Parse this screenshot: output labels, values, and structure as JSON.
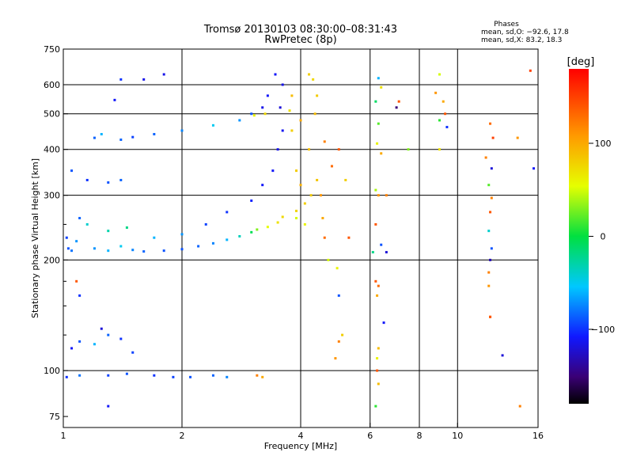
{
  "title": {
    "line1": "Tromsø 20130103 08:30:00–08:31:43",
    "line2": "RwPretec (8p)"
  },
  "phases": {
    "heading": "Phases",
    "o_line": "mean, sd,O: −92.6, 17.8",
    "x_line": "mean, sd,X:  83.2, 18.3"
  },
  "colorbar": {
    "label": "[deg]",
    "ticks": [
      {
        "value": 100,
        "label": "100"
      },
      {
        "value": 0,
        "label": "0"
      },
      {
        "value": -100,
        "label": "−100"
      }
    ],
    "range": [
      -180,
      180
    ]
  },
  "chart_data": {
    "type": "scatter",
    "xlabel": "Frequency [MHz]",
    "ylabel": "Stationary phase Virtual Height [km]",
    "xscale": "log",
    "yscale": "log",
    "xlim": [
      1,
      16
    ],
    "ylim": [
      70,
      750
    ],
    "xticks": [
      {
        "value": 1,
        "label": "1"
      },
      {
        "value": 2,
        "label": "2"
      },
      {
        "value": 4,
        "label": "4"
      },
      {
        "value": 6,
        "label": "6"
      },
      {
        "value": 8,
        "label": "8"
      },
      {
        "value": 10,
        "label": "10"
      },
      {
        "value": 16,
        "label": "16"
      }
    ],
    "yticks": [
      {
        "value": 75,
        "label": "75"
      },
      {
        "value": 100,
        "label": "100"
      },
      {
        "value": 200,
        "label": "200"
      },
      {
        "value": 300,
        "label": "300"
      },
      {
        "value": 400,
        "label": "400"
      },
      {
        "value": 500,
        "label": "500"
      },
      {
        "value": 600,
        "label": "600"
      },
      {
        "value": 750,
        "label": "750"
      }
    ],
    "xgrid": [
      2,
      4,
      6,
      8,
      10
    ],
    "ygrid": [
      100,
      200,
      300,
      400,
      500,
      600
    ],
    "minor_ygrid": [
      125,
      150,
      175,
      250
    ],
    "color_dimension": "phase [deg]",
    "points": [
      [
        1.02,
        230,
        -95
      ],
      [
        1.03,
        215,
        -90
      ],
      [
        1.05,
        212,
        -80
      ],
      [
        1.08,
        225,
        -70
      ],
      [
        1.1,
        260,
        -85
      ],
      [
        1.2,
        215,
        -70
      ],
      [
        1.3,
        212,
        -60
      ],
      [
        1.4,
        218,
        -50
      ],
      [
        1.5,
        213,
        -75
      ],
      [
        1.6,
        211,
        -85
      ],
      [
        1.8,
        212,
        -90
      ],
      [
        2.0,
        214,
        -90
      ],
      [
        2.2,
        218,
        -85
      ],
      [
        2.4,
        222,
        -75
      ],
      [
        2.6,
        227,
        -60
      ],
      [
        2.8,
        232,
        -35
      ],
      [
        3.0,
        238,
        -5
      ],
      [
        3.1,
        242,
        30
      ],
      [
        3.3,
        246,
        55
      ],
      [
        3.5,
        253,
        70
      ],
      [
        3.6,
        262,
        75
      ],
      [
        3.9,
        272,
        78
      ],
      [
        4.1,
        285,
        80
      ],
      [
        4.25,
        300,
        82
      ],
      [
        4.4,
        330,
        85
      ],
      [
        1.15,
        250,
        -40
      ],
      [
        1.3,
        240,
        -30
      ],
      [
        1.45,
        245,
        -20
      ],
      [
        1.7,
        230,
        -60
      ],
      [
        2.0,
        235,
        -70
      ],
      [
        2.3,
        250,
        -95
      ],
      [
        2.6,
        270,
        -100
      ],
      [
        3.0,
        290,
        -105
      ],
      [
        3.2,
        320,
        -110
      ],
      [
        3.4,
        350,
        -110
      ],
      [
        3.5,
        400,
        -115
      ],
      [
        3.6,
        450,
        -112
      ],
      [
        3.55,
        520,
        -120
      ],
      [
        3.6,
        600,
        -115
      ],
      [
        3.45,
        640,
        -110
      ],
      [
        3.3,
        560,
        -110
      ],
      [
        3.2,
        520,
        -115
      ],
      [
        3.0,
        500,
        -90
      ],
      [
        2.8,
        480,
        -70
      ],
      [
        3.05,
        495,
        60
      ],
      [
        3.25,
        500,
        75
      ],
      [
        2.4,
        465,
        -50
      ],
      [
        2.0,
        450,
        -75
      ],
      [
        1.7,
        440,
        -85
      ],
      [
        1.5,
        432,
        -95
      ],
      [
        1.2,
        430,
        -85
      ],
      [
        1.25,
        440,
        -60
      ],
      [
        1.4,
        425,
        -85
      ],
      [
        1.15,
        330,
        -100
      ],
      [
        1.3,
        325,
        -90
      ],
      [
        1.4,
        330,
        -85
      ],
      [
        1.05,
        350,
        -90
      ],
      [
        1.8,
        640,
        -115
      ],
      [
        1.6,
        620,
        -115
      ],
      [
        1.4,
        620,
        -100
      ],
      [
        1.35,
        545,
        -110
      ],
      [
        4.2,
        400,
        88
      ],
      [
        4.35,
        500,
        90
      ],
      [
        4.4,
        560,
        82
      ],
      [
        4.3,
        620,
        75
      ],
      [
        4.2,
        640,
        80
      ],
      [
        3.8,
        450,
        80
      ],
      [
        3.9,
        350,
        82
      ],
      [
        4.0,
        320,
        95
      ],
      [
        4.5,
        300,
        110
      ],
      [
        4.8,
        360,
        130
      ],
      [
        4.6,
        420,
        120
      ],
      [
        4.0,
        480,
        100
      ],
      [
        3.75,
        510,
        70
      ],
      [
        3.8,
        560,
        90
      ],
      [
        4.1,
        250,
        60
      ],
      [
        3.9,
        260,
        50
      ],
      [
        1.1,
        120,
        -90
      ],
      [
        1.05,
        115,
        -110
      ],
      [
        1.2,
        118,
        -60
      ],
      [
        1.3,
        125,
        -85
      ],
      [
        1.4,
        122,
        -100
      ],
      [
        1.5,
        112,
        -95
      ],
      [
        1.25,
        130,
        -120
      ],
      [
        1.02,
        96,
        -100
      ],
      [
        1.1,
        97,
        -80
      ],
      [
        1.3,
        97,
        -95
      ],
      [
        1.45,
        98,
        -90
      ],
      [
        1.7,
        97,
        -100
      ],
      [
        1.9,
        96,
        -95
      ],
      [
        2.1,
        96,
        -90
      ],
      [
        2.4,
        97,
        -85
      ],
      [
        2.6,
        96,
        -75
      ],
      [
        3.1,
        97,
        120
      ],
      [
        3.2,
        96,
        100
      ],
      [
        1.3,
        80,
        -110
      ],
      [
        1.08,
        175,
        140
      ],
      [
        1.1,
        160,
        -100
      ],
      [
        4.7,
        200,
        50
      ],
      [
        5.0,
        160,
        -90
      ],
      [
        5.1,
        125,
        80
      ],
      [
        5.0,
        120,
        120
      ],
      [
        4.9,
        108,
        110
      ],
      [
        5.0,
        400,
        140
      ],
      [
        5.2,
        330,
        80
      ],
      [
        6.3,
        625,
        -60
      ],
      [
        6.4,
        590,
        70
      ],
      [
        6.2,
        540,
        -10
      ],
      [
        6.3,
        470,
        20
      ],
      [
        6.25,
        415,
        60
      ],
      [
        6.4,
        390,
        100
      ],
      [
        6.2,
        310,
        40
      ],
      [
        6.3,
        300,
        110
      ],
      [
        6.2,
        250,
        140
      ],
      [
        6.4,
        220,
        -90
      ],
      [
        6.6,
        210,
        -120
      ],
      [
        6.2,
        175,
        140
      ],
      [
        6.3,
        170,
        130
      ],
      [
        6.25,
        160,
        100
      ],
      [
        6.5,
        135,
        -110
      ],
      [
        6.3,
        115,
        90
      ],
      [
        6.25,
        108,
        60
      ],
      [
        6.25,
        100,
        140
      ],
      [
        6.3,
        92,
        90
      ],
      [
        6.2,
        80,
        10
      ],
      [
        6.6,
        300,
        120
      ],
      [
        7.0,
        520,
        -150
      ],
      [
        7.1,
        540,
        140
      ],
      [
        7.5,
        400,
        30
      ],
      [
        9.0,
        640,
        50
      ],
      [
        8.8,
        570,
        110
      ],
      [
        9.0,
        480,
        10
      ],
      [
        9.3,
        500,
        140
      ],
      [
        9.0,
        400,
        70
      ],
      [
        9.4,
        460,
        -100
      ],
      [
        9.2,
        540,
        100
      ],
      [
        12.1,
        470,
        130
      ],
      [
        12.3,
        430,
        150
      ],
      [
        12.2,
        355,
        -120
      ],
      [
        12.0,
        320,
        20
      ],
      [
        12.2,
        295,
        120
      ],
      [
        12.1,
        270,
        140
      ],
      [
        12.0,
        240,
        -40
      ],
      [
        12.2,
        215,
        -90
      ],
      [
        12.1,
        200,
        -130
      ],
      [
        12.0,
        170,
        110
      ],
      [
        12.1,
        140,
        130
      ],
      [
        13.0,
        110,
        -120
      ],
      [
        14.2,
        430,
        110
      ],
      [
        15.3,
        655,
        150
      ],
      [
        15.6,
        355,
        -110
      ],
      [
        14.4,
        80,
        120
      ],
      [
        12.1,
        140,
        140
      ],
      [
        12.0,
        185,
        120
      ],
      [
        11.8,
        380,
        120
      ],
      [
        6.1,
        210,
        -20
      ],
      [
        4.95,
        190,
        60
      ],
      [
        5.3,
        230,
        140
      ],
      [
        4.55,
        260,
        100
      ],
      [
        4.6,
        230,
        130
      ]
    ]
  }
}
